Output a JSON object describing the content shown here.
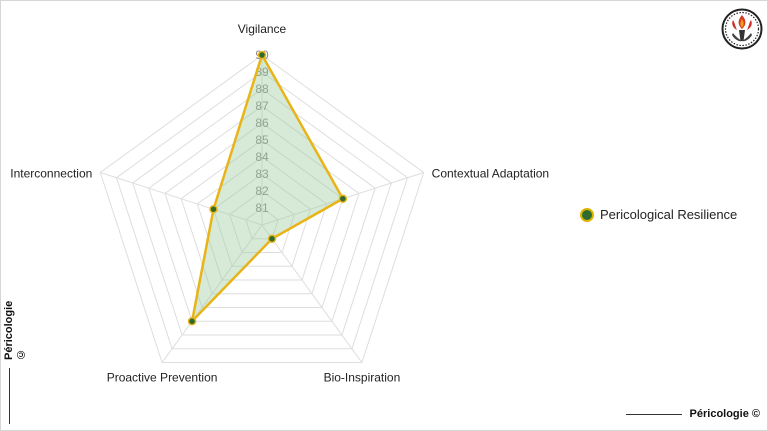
{
  "chart_data": {
    "type": "radar",
    "categories": [
      "Vigilance",
      "Contextual Adaptation",
      "Bio-Inspiration",
      "Proactive Prevention",
      "Interconnection"
    ],
    "series": [
      {
        "name": "Pericological Resilience",
        "values": [
          90,
          85,
          81,
          87,
          83
        ]
      }
    ],
    "rlim": [
      80,
      90
    ],
    "ticks": [
      81,
      82,
      83,
      84,
      85,
      86,
      87,
      88,
      89,
      90
    ],
    "legend_position": "right",
    "colors": {
      "line": "#e8b417",
      "fill": "#9cc89c",
      "marker": "#2e6b2e",
      "grid": "#dedede"
    }
  },
  "legend": {
    "label": "Pericological Resilience"
  },
  "watermark": {
    "text": "Péricologie ©"
  },
  "logo": {
    "icon": "torch-emblem-icon"
  }
}
